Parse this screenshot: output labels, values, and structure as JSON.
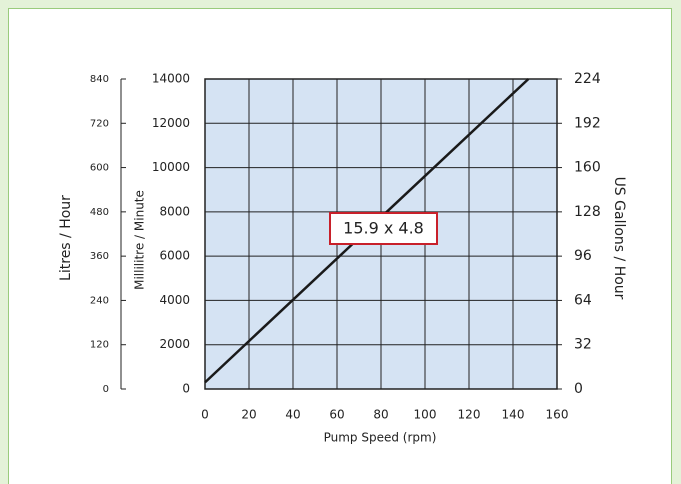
{
  "chart_data": {
    "type": "line",
    "x": [
      0,
      147
    ],
    "series": [
      {
        "color": "#1a1a1a",
        "values": [
          300,
          14000
        ]
      }
    ],
    "xlim": [
      0,
      160
    ],
    "xticks": [
      0,
      20,
      40,
      60,
      80,
      100,
      120,
      140,
      160
    ],
    "ylim": [
      0,
      14000
    ],
    "yticks": [
      0,
      2000,
      4000,
      6000,
      8000,
      10000,
      12000,
      14000
    ],
    "y2lim": [
      0,
      224
    ],
    "y2ticks": [
      0,
      32,
      64,
      96,
      128,
      160,
      192,
      224
    ],
    "y3lim": [
      0,
      840
    ],
    "y3ticks": [
      0,
      120,
      240,
      360,
      480,
      600,
      720,
      840
    ],
    "x_label": "Pump Speed (rpm)",
    "y_label": "Millilitre / Minute",
    "y2_label": "US Gallons / Hour",
    "y3_label": "Litres / Hour",
    "annotation": "15.9 x 4.8",
    "grid": true,
    "plot_color": "#d5e3f3"
  }
}
